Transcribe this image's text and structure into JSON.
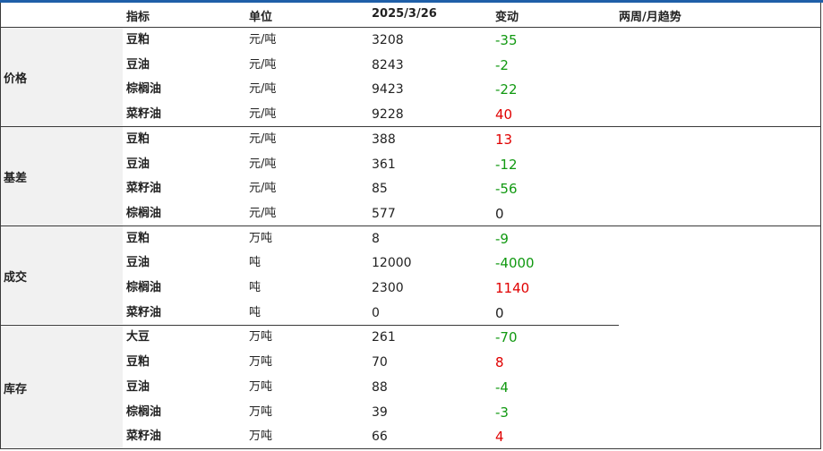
{
  "header": {
    "indicator": "指标",
    "unit": "单位",
    "date": "2025/3/26",
    "change": "变动",
    "trend": "两周/月趋势"
  },
  "groups": [
    {
      "name": "价格",
      "rows": [
        {
          "item": "豆粕",
          "unit": "元/吨",
          "value": "3208",
          "change": "-35",
          "sign": "neg"
        },
        {
          "item": "豆油",
          "unit": "元/吨",
          "value": "8243",
          "change": "-2",
          "sign": "neg"
        },
        {
          "item": "棕榈油",
          "unit": "元/吨",
          "value": "9423",
          "change": "-22",
          "sign": "neg"
        },
        {
          "item": "菜籽油",
          "unit": "元/吨",
          "value": "9228",
          "change": "40",
          "sign": "pos"
        }
      ]
    },
    {
      "name": "基差",
      "rows": [
        {
          "item": "豆粕",
          "unit": "元/吨",
          "value": "388",
          "change": "13",
          "sign": "pos"
        },
        {
          "item": "豆油",
          "unit": "元/吨",
          "value": "361",
          "change": "-12",
          "sign": "neg"
        },
        {
          "item": "菜籽油",
          "unit": "元/吨",
          "value": "85",
          "change": "-56",
          "sign": "neg"
        },
        {
          "item": "棕榈油",
          "unit": "元/吨",
          "value": "577",
          "change": "0",
          "sign": "zero"
        }
      ]
    },
    {
      "name": "成交",
      "rows": [
        {
          "item": "豆粕",
          "unit": "万吨",
          "value": "8",
          "change": "-9",
          "sign": "neg"
        },
        {
          "item": "豆油",
          "unit": "吨",
          "value": "12000",
          "change": "-4000",
          "sign": "neg"
        },
        {
          "item": "棕榈油",
          "unit": "吨",
          "value": "2300",
          "change": "1140",
          "sign": "pos"
        },
        {
          "item": "菜籽油",
          "unit": "吨",
          "value": "0",
          "change": "0",
          "sign": "zero"
        }
      ]
    },
    {
      "name": "库存",
      "rows": [
        {
          "item": "大豆",
          "unit": "万吨",
          "value": "261",
          "change": "-70",
          "sign": "neg"
        },
        {
          "item": "豆粕",
          "unit": "万吨",
          "value": "70",
          "change": "8",
          "sign": "pos"
        },
        {
          "item": "豆油",
          "unit": "万吨",
          "value": "88",
          "change": "-4",
          "sign": "neg"
        },
        {
          "item": "棕榈油",
          "unit": "万吨",
          "value": "39",
          "change": "-3",
          "sign": "neg"
        },
        {
          "item": "菜籽油",
          "unit": "万吨",
          "value": "66",
          "change": "4",
          "sign": "pos"
        }
      ]
    }
  ],
  "colors": {
    "positive": "#e00000",
    "negative": "#119911",
    "header_bar": "#1f5fa8"
  }
}
